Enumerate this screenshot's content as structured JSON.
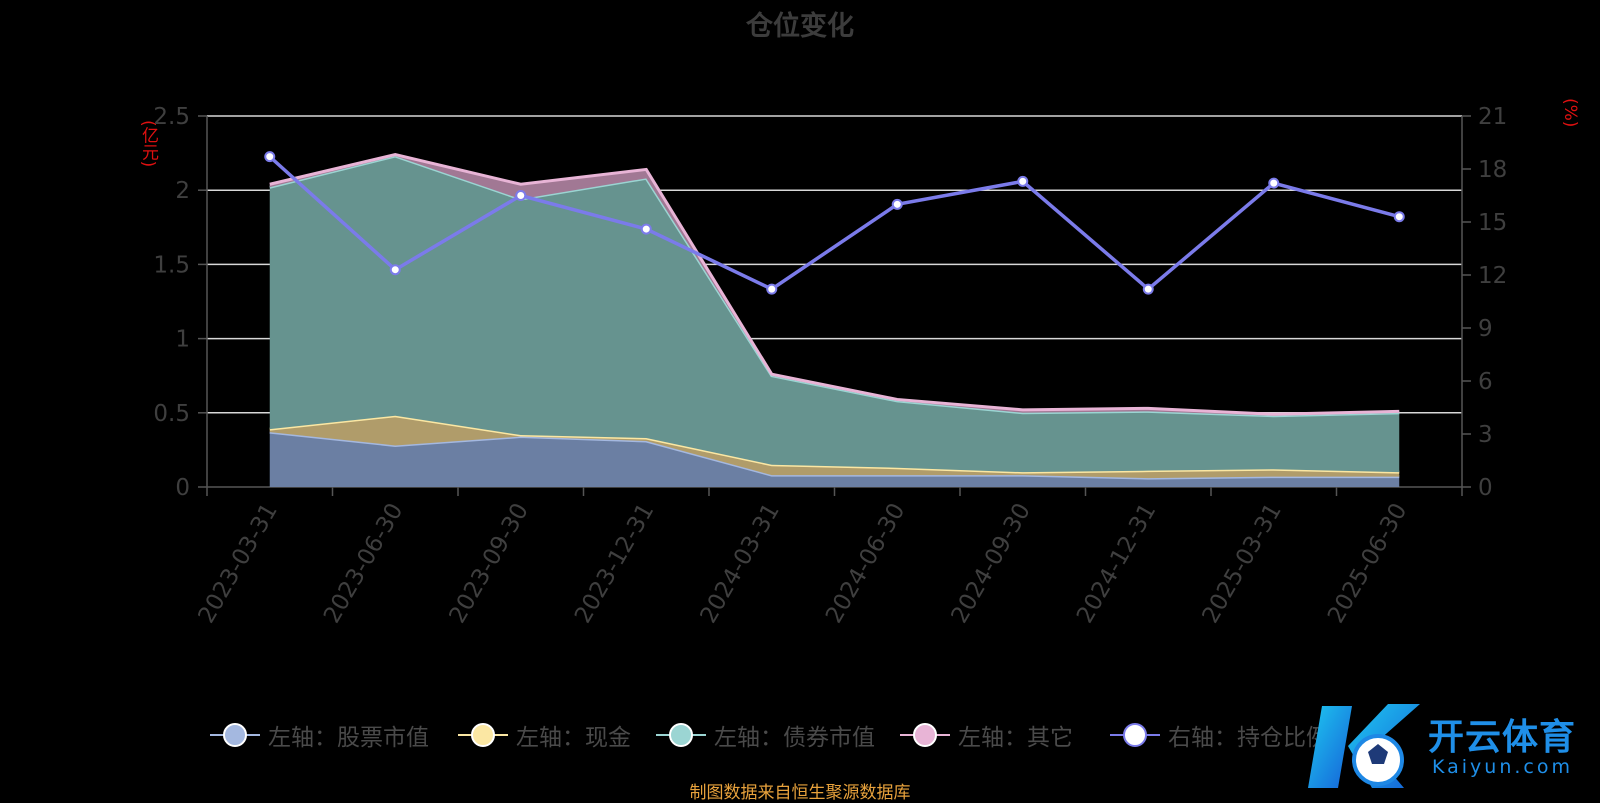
{
  "title": "仓位变化",
  "unit_left": "(亿元)",
  "unit_right": "(%)",
  "footer": "制图数据来自恒生聚源数据库",
  "watermark": {
    "brand": "开云体育",
    "url": "Kaiyun.com"
  },
  "legend": [
    {
      "label": "左轴：股票市值",
      "color": "#a4b8e0"
    },
    {
      "label": "左轴：现金",
      "color": "#fbe7a3"
    },
    {
      "label": "左轴：债券市值",
      "color": "#9bd5d3"
    },
    {
      "label": "左轴：其它",
      "color": "#e8b4d6"
    },
    {
      "label": "右轴：持仓比例",
      "color": "#7b7bea"
    }
  ],
  "chart_data": {
    "type": "area",
    "stacked": true,
    "categories": [
      "2023-03-31",
      "2023-06-30",
      "2023-09-30",
      "2023-12-31",
      "2024-03-31",
      "2024-06-30",
      "2024-09-30",
      "2024-12-31",
      "2025-03-31",
      "2025-06-30"
    ],
    "left_axis": {
      "ticks": [
        "0",
        "0.5",
        "1",
        "1.5",
        "2",
        "2.5"
      ],
      "ylim": [
        0,
        2.5
      ]
    },
    "right_axis": {
      "ticks": [
        "0",
        "3",
        "6",
        "9",
        "12",
        "15",
        "18",
        "21"
      ],
      "ylim": [
        0,
        21
      ]
    },
    "series": [
      {
        "name": "左轴：股票市值",
        "axis": "left",
        "color": "#a4b8e0",
        "fill": "#6b7fa3",
        "values": [
          0.37,
          0.28,
          0.34,
          0.31,
          0.08,
          0.08,
          0.08,
          0.06,
          0.07,
          0.07
        ]
      },
      {
        "name": "左轴：现金",
        "axis": "left",
        "color": "#fbe7a3",
        "fill": "#b09c6a",
        "values": [
          0.02,
          0.2,
          0.01,
          0.02,
          0.07,
          0.05,
          0.02,
          0.05,
          0.05,
          0.03
        ]
      },
      {
        "name": "左轴：债券市值",
        "axis": "left",
        "color": "#9bd5d3",
        "fill": "#66938f",
        "values": [
          1.63,
          1.75,
          1.59,
          1.75,
          0.6,
          0.45,
          0.4,
          0.4,
          0.36,
          0.4
        ]
      },
      {
        "name": "左轴：其它",
        "axis": "left",
        "color": "#e8b4d6",
        "fill": "#a17894",
        "values": [
          0.02,
          0.01,
          0.1,
          0.06,
          0.01,
          0.01,
          0.02,
          0.02,
          0.01,
          0.01
        ]
      },
      {
        "name": "右轴：持仓比例",
        "axis": "right",
        "type": "line",
        "color": "#7b7bea",
        "values": [
          18.7,
          12.3,
          16.5,
          14.6,
          11.2,
          16.0,
          17.3,
          11.2,
          17.2,
          15.3
        ]
      }
    ]
  }
}
